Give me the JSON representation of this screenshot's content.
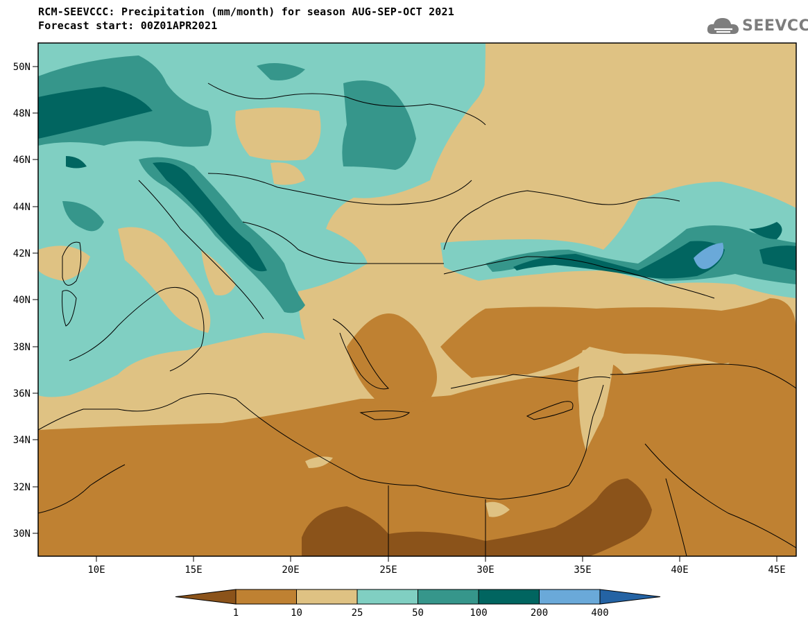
{
  "title_line1": "RCM-SEEVCCC: Precipitation (mm/month) for season AUG-SEP-OCT 2021",
  "title_line2": "Forecast start: 00Z01APR2021",
  "logo_text": "SEEVCCC",
  "map": {
    "lat_ticks": [
      "50N",
      "48N",
      "46N",
      "44N",
      "42N",
      "40N",
      "38N",
      "36N",
      "34N",
      "32N",
      "30N"
    ],
    "lon_ticks": [
      "10E",
      "15E",
      "20E",
      "25E",
      "30E",
      "35E",
      "40E",
      "45E"
    ]
  },
  "colorbar": {
    "labels": [
      "1",
      "10",
      "25",
      "50",
      "100",
      "200",
      "400"
    ],
    "colors": [
      "#8b531a",
      "#bf8132",
      "#dfc283",
      "#80cfc2",
      "#36968b",
      "#016560",
      "#6aa9d9",
      "#2463a4"
    ]
  }
}
